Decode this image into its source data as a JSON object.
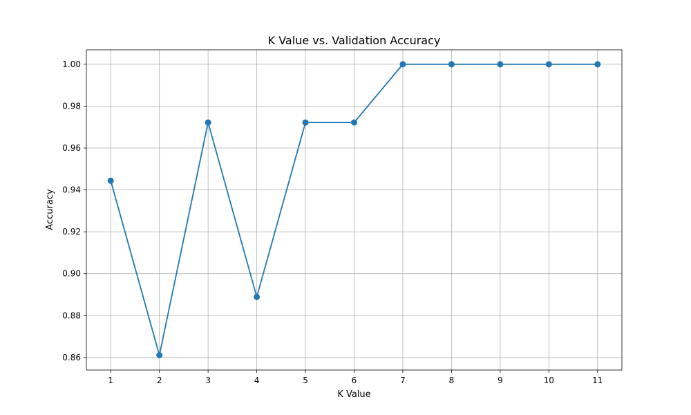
{
  "chart_data": {
    "type": "line",
    "title": "K Value vs. Validation Accuracy",
    "xlabel": "K Value",
    "ylabel": "Accuracy",
    "x": [
      1,
      2,
      3,
      4,
      5,
      6,
      7,
      8,
      9,
      10,
      11
    ],
    "series": [
      {
        "values": [
          0.9444,
          0.8611,
          0.9722,
          0.8889,
          0.9722,
          0.9722,
          1.0,
          1.0,
          1.0,
          1.0,
          1.0
        ],
        "color": "#1f77b4",
        "marker": "circle"
      }
    ],
    "xticks": [
      "1",
      "2",
      "3",
      "4",
      "5",
      "6",
      "7",
      "8",
      "9",
      "10",
      "11"
    ],
    "yticks": [
      0.86,
      0.88,
      0.9,
      0.92,
      0.94,
      0.96,
      0.98,
      1.0
    ],
    "ytick_labels": [
      "0.86",
      "0.88",
      "0.90",
      "0.92",
      "0.94",
      "0.96",
      "0.98",
      "1.00"
    ],
    "xlim": [
      0.5,
      11.5
    ],
    "ylim": [
      0.854,
      1.0069
    ],
    "grid": true,
    "colors": {
      "line": "#1f77b4",
      "grid": "#b0b0b0",
      "axes": "#000000",
      "background": "#ffffff"
    }
  }
}
